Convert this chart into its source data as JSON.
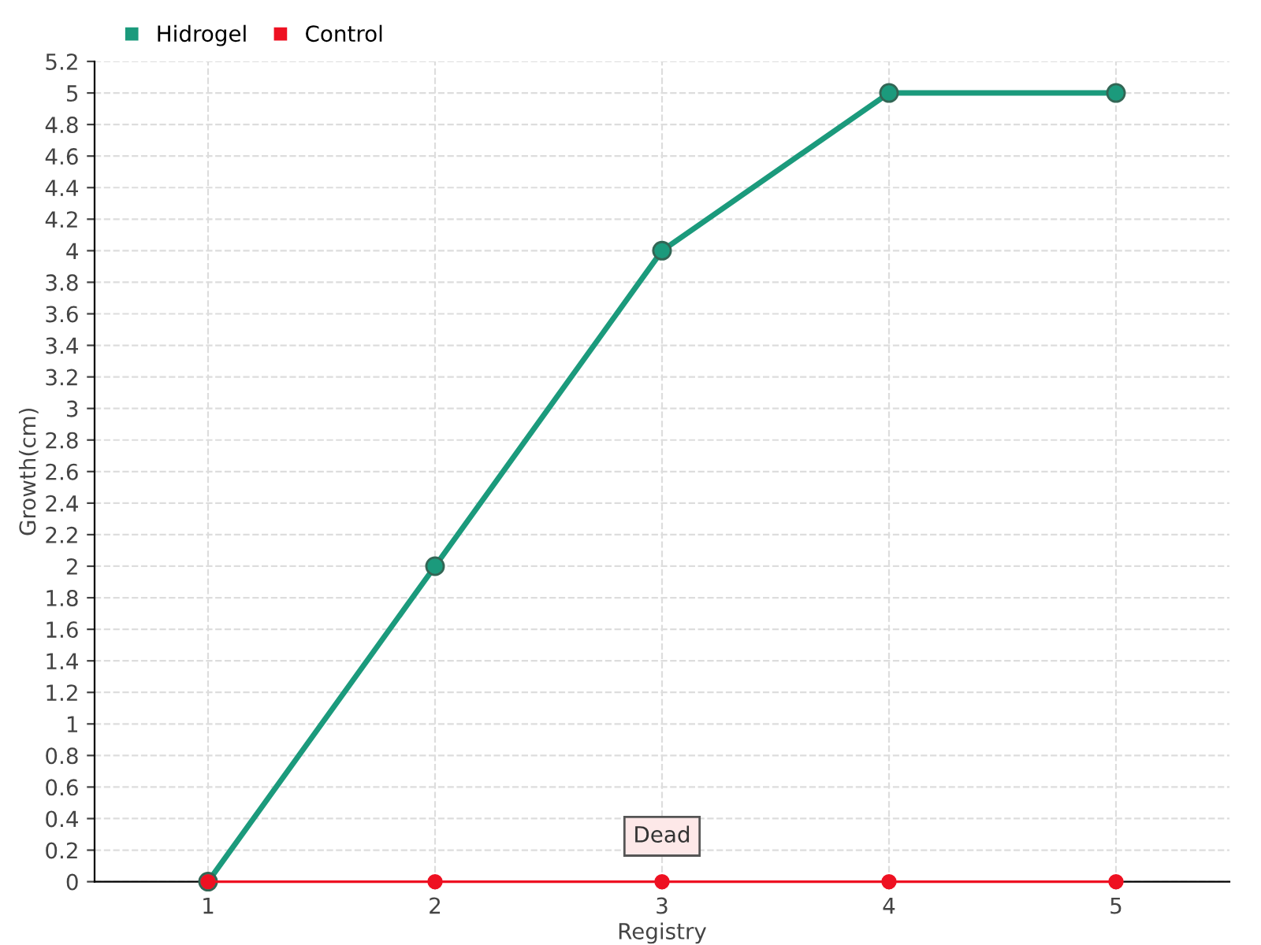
{
  "chart_data": {
    "type": "line",
    "xlabel": "Registry",
    "ylabel": "Growth(cm)",
    "categories": [
      "1",
      "2",
      "3",
      "4",
      "5"
    ],
    "series": [
      {
        "name": "Hidrogel",
        "color": "#1b9a7c",
        "values": [
          0,
          2,
          4,
          5,
          5
        ]
      },
      {
        "name": "Control",
        "color": "#ee1122",
        "values": [
          0,
          0,
          0,
          0,
          0
        ]
      }
    ],
    "ylim": [
      0,
      5.2
    ],
    "yticks": [
      0,
      0.2,
      0.4,
      0.6,
      0.8,
      1,
      1.2,
      1.4,
      1.6,
      1.8,
      2,
      2.2,
      2.4,
      2.6,
      2.8,
      3,
      3.2,
      3.4,
      3.6,
      3.8,
      4,
      4.2,
      4.4,
      4.6,
      4.8,
      5,
      5.2
    ],
    "annotations": [
      {
        "text": "Dead",
        "x": "3",
        "y": 0
      }
    ],
    "grid": true,
    "legend": "top left",
    "marker": "circle",
    "line_style": "solid"
  }
}
